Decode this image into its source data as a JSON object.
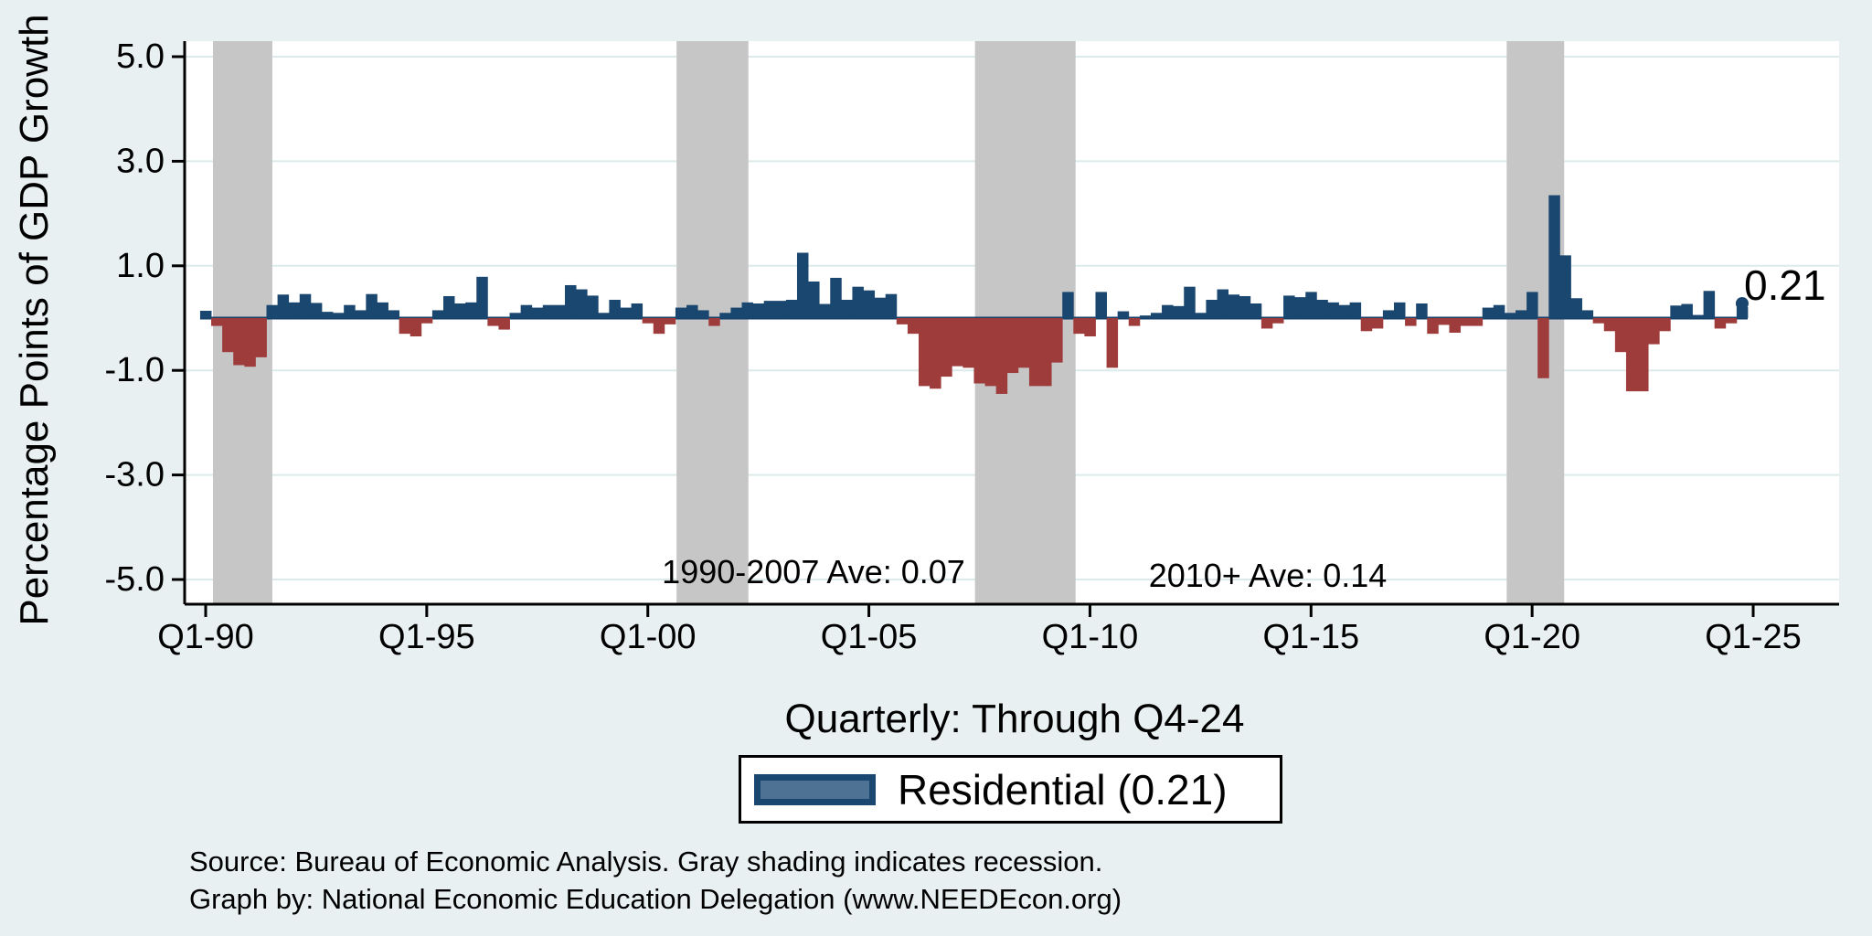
{
  "figure": {
    "background_color": "#e9f0f2",
    "plot_background_color": "#ffffff",
    "positive_bar_color": "#1a476f",
    "negative_bar_color": "#9e3c3c",
    "recession_band_color": "#c6c6c6",
    "gridline_color": "#dceaec",
    "axis_color": "#000000",
    "zero_line_color": "#17406b"
  },
  "chart_data": {
    "type": "bar",
    "title": "",
    "ylabel": "Percentage Points of GDP Growth",
    "xlabel": "Quarterly: Through Q4-24",
    "ylim": [
      -5.5,
      5.3
    ],
    "yticks": [
      {
        "value": 5.0,
        "label": "5.0"
      },
      {
        "value": 3.0,
        "label": "3.0"
      },
      {
        "value": 1.0,
        "label": "1.0"
      },
      {
        "value": -1.0,
        "label": "-1.0"
      },
      {
        "value": -3.0,
        "label": "-3.0"
      },
      {
        "value": -5.0,
        "label": "-5.0"
      }
    ],
    "xticks": [
      {
        "quarter_index": 0,
        "label": "Q1-90"
      },
      {
        "quarter_index": 20,
        "label": "Q1-95"
      },
      {
        "quarter_index": 40,
        "label": "Q1-00"
      },
      {
        "quarter_index": 60,
        "label": "Q1-05"
      },
      {
        "quarter_index": 80,
        "label": "Q1-10"
      },
      {
        "quarter_index": 100,
        "label": "Q1-15"
      },
      {
        "quarter_index": 120,
        "label": "Q1-20"
      },
      {
        "quarter_index": 140,
        "label": "Q1-25"
      }
    ],
    "series_name": "Residential",
    "first_quarter": "Q1-1990",
    "last_quarter": "Q4-2024",
    "values": [
      0.14,
      -0.15,
      -0.65,
      -0.9,
      -0.93,
      -0.75,
      0.25,
      0.45,
      0.3,
      0.46,
      0.29,
      0.12,
      0.1,
      0.25,
      0.15,
      0.46,
      0.3,
      0.15,
      -0.3,
      -0.35,
      -0.1,
      0.15,
      0.42,
      0.28,
      0.3,
      0.79,
      -0.15,
      -0.22,
      0.1,
      0.25,
      0.2,
      0.25,
      0.25,
      0.63,
      0.55,
      0.43,
      0.1,
      0.35,
      0.2,
      0.28,
      -0.1,
      -0.3,
      -0.12,
      0.2,
      0.25,
      0.15,
      -0.15,
      0.1,
      0.2,
      0.3,
      0.28,
      0.33,
      0.33,
      0.35,
      1.25,
      0.7,
      0.27,
      0.77,
      0.35,
      0.6,
      0.53,
      0.39,
      0.46,
      -0.12,
      -0.3,
      -1.3,
      -1.35,
      -1.12,
      -0.92,
      -0.95,
      -1.25,
      -1.3,
      -1.45,
      -1.05,
      -0.95,
      -1.3,
      -1.3,
      -0.85,
      0.5,
      -0.3,
      -0.35,
      0.5,
      -0.95,
      0.13,
      -0.15,
      0.05,
      0.1,
      0.25,
      0.23,
      0.6,
      0.1,
      0.35,
      0.55,
      0.45,
      0.42,
      0.28,
      -0.2,
      -0.1,
      0.43,
      0.4,
      0.5,
      0.35,
      0.3,
      0.25,
      0.3,
      -0.25,
      -0.2,
      0.15,
      0.3,
      -0.15,
      0.28,
      -0.3,
      -0.13,
      -0.28,
      -0.15,
      -0.15,
      0.2,
      0.25,
      0.1,
      0.15,
      0.5,
      -1.15,
      2.35,
      1.2,
      0.38,
      0.15,
      -0.1,
      -0.25,
      -0.65,
      -1.4,
      -1.4,
      -0.5,
      -0.25,
      0.24,
      0.27,
      0.06,
      0.52,
      -0.2,
      -0.1,
      0.21
    ],
    "last_value": 0.21,
    "recession_bands": [
      {
        "period": "1990-1991",
        "start_index": 0.66,
        "end_index": 6.03
      },
      {
        "period": "2001",
        "start_index": 42.6,
        "end_index": 49.1
      },
      {
        "period": "2007-2009",
        "start_index": 69.6,
        "end_index": 78.7
      },
      {
        "period": "2020",
        "start_index": 117.7,
        "end_index": 122.9
      }
    ],
    "annotations": {
      "early_average": "1990-2007 Ave: 0.07",
      "late_average": "2010+ Ave: 0.14",
      "last_value_label": "0.21"
    },
    "legend": {
      "label": "Residential (0.21)"
    },
    "notes": {
      "source_line": "Source: Bureau of Economic Analysis. Gray shading indicates recession.",
      "credit_line": "Graph by: National Economic Education Delegation (www.NEEDEcon.org)"
    }
  }
}
